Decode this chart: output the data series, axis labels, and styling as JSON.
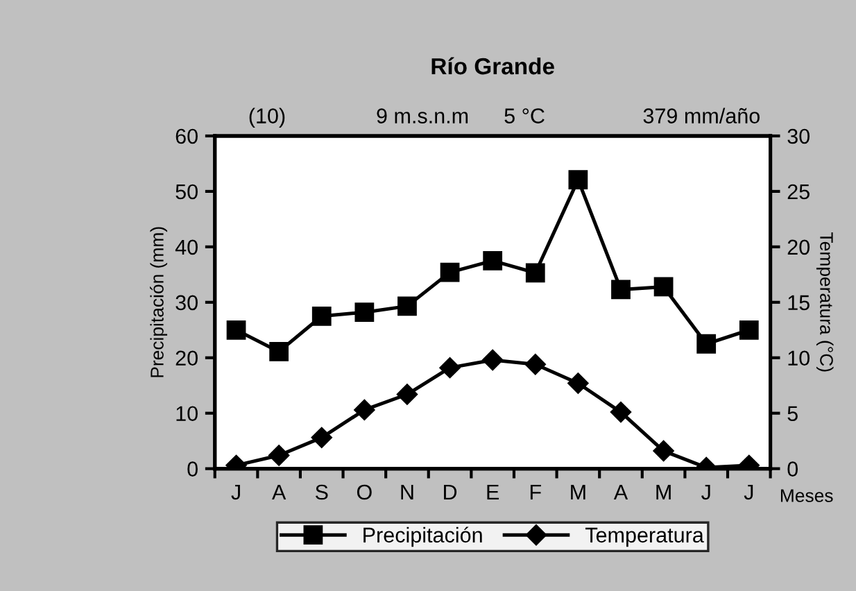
{
  "chart_data": {
    "type": "line",
    "title": "Río Grande",
    "xlabel": "Meses",
    "ylabel": "Precipitación (mm)",
    "y2label": "Temperatura (°C)",
    "annotations": [
      "(10)",
      "9 m.s.n.m",
      "5 °C",
      "379 mm/año"
    ],
    "categories": [
      "J",
      "A",
      "S",
      "O",
      "N",
      "D",
      "E",
      "F",
      "M",
      "A",
      "M",
      "J",
      "J"
    ],
    "series": [
      {
        "name": "Precipitación",
        "color": "#000000",
        "marker": "square",
        "values": [
          25,
          21.1,
          27.5,
          28.2,
          29.3,
          35.4,
          37.5,
          35.3,
          52.1,
          32.3,
          32.8,
          22.5,
          25
        ]
      },
      {
        "name": "Temperatura",
        "color": "#000000",
        "marker": "diamond",
        "axis": "y2",
        "values": [
          0.3,
          1.2,
          2.8,
          5.3,
          6.7,
          9.1,
          9.8,
          9.4,
          7.7,
          5.1,
          1.6,
          0.1,
          0.3
        ]
      }
    ],
    "ylim": [
      0,
      60
    ],
    "yticks": [
      0,
      10,
      20,
      30,
      40,
      50,
      60
    ],
    "y2lim": [
      0,
      30
    ],
    "y2ticks": [
      0,
      5,
      10,
      15,
      20,
      25,
      30
    ],
    "grid": false,
    "legend": "bottom",
    "line_style": "solid"
  }
}
